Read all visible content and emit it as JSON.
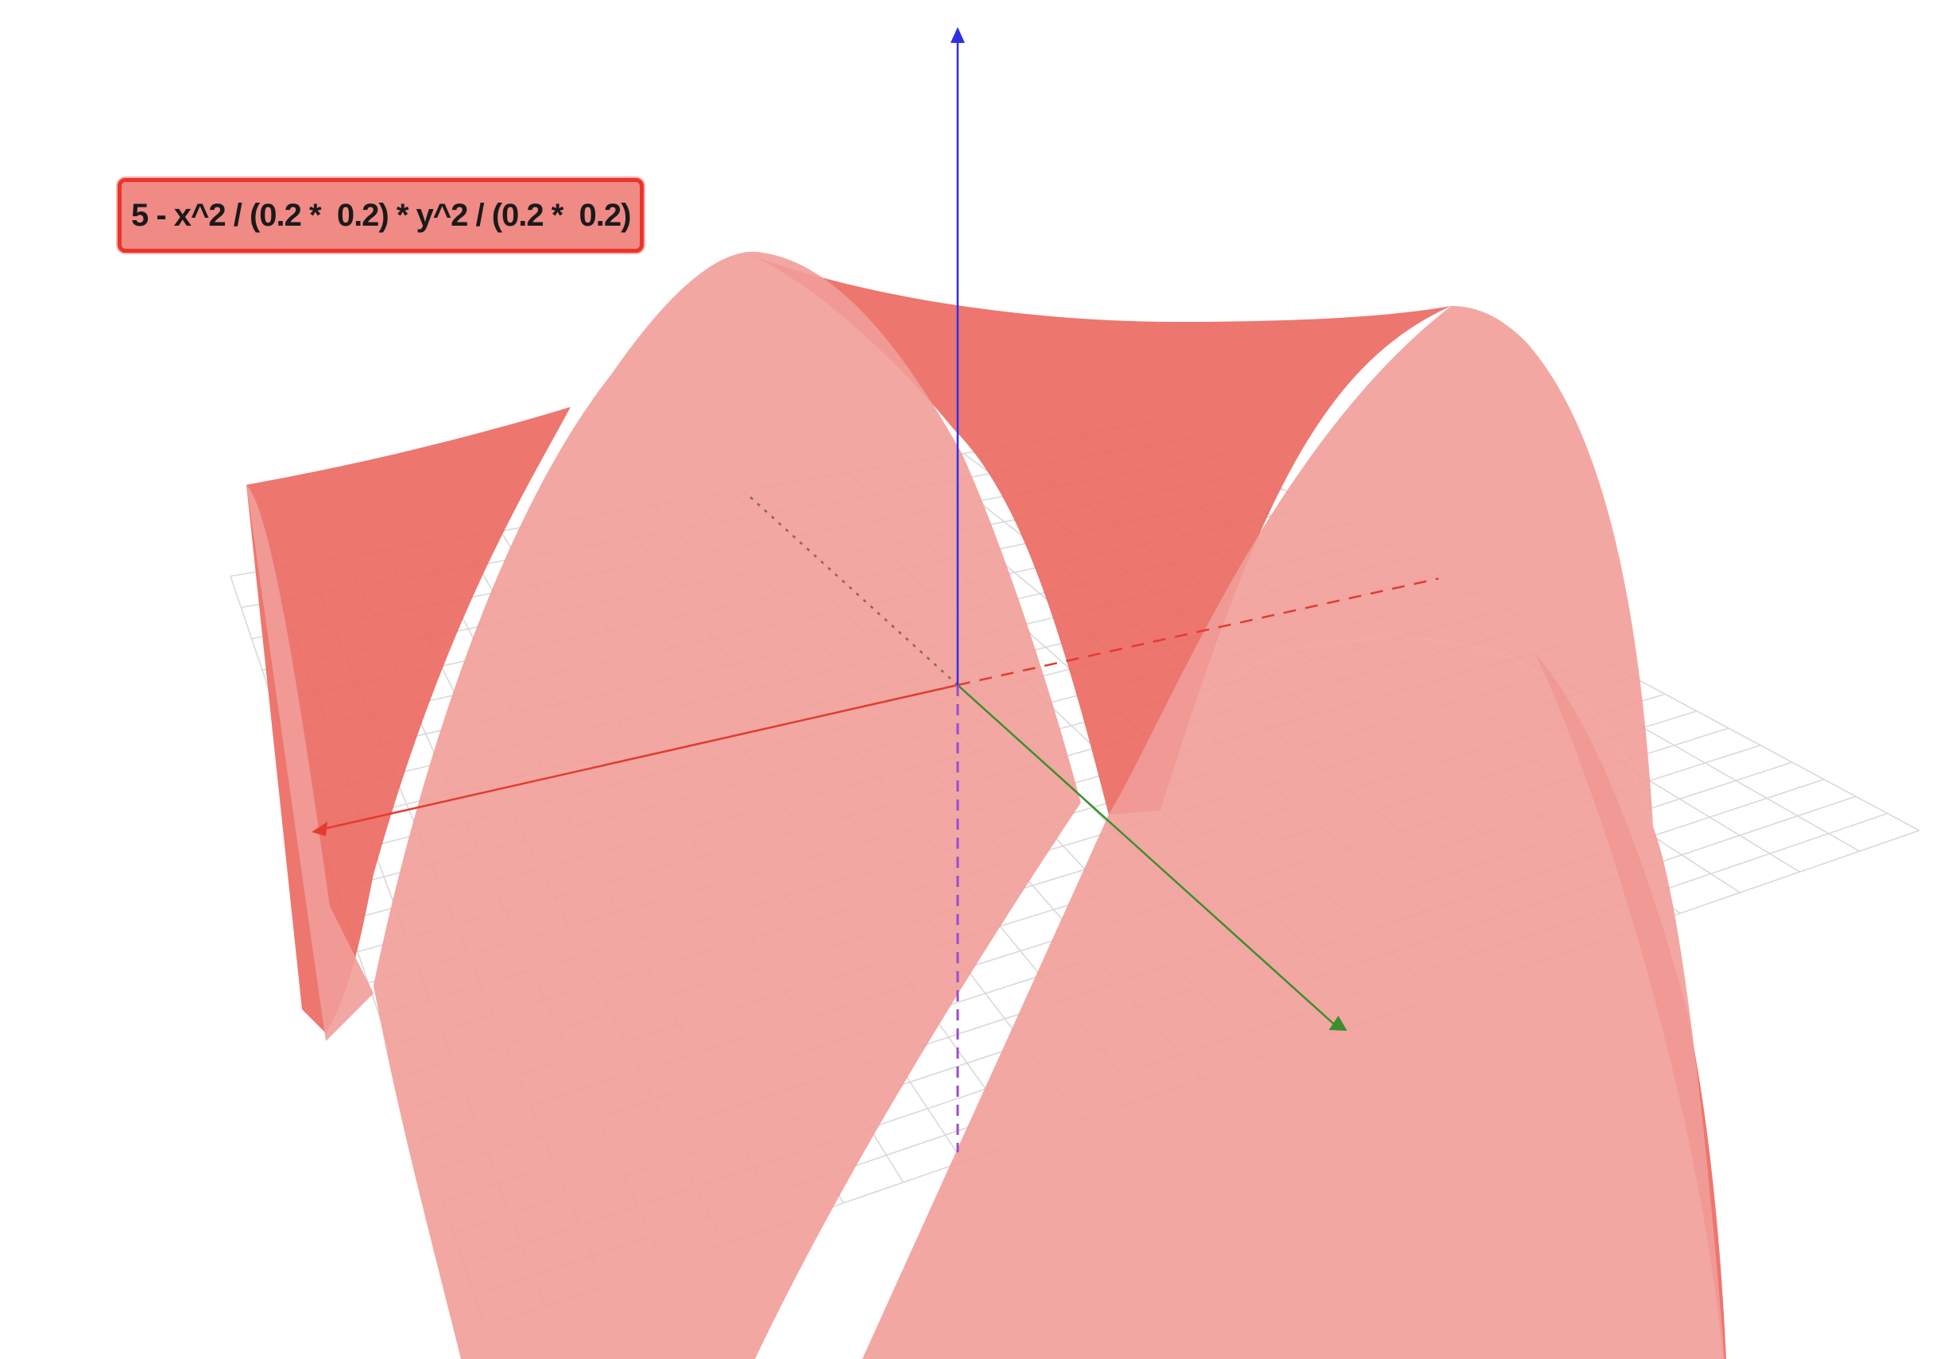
{
  "graph": {
    "formula_label": "5 - x^2 / (0.2 *  0.2) * y^2 / (0.2 *  0.2)",
    "surface_colors": {
      "front": "#f19d99",
      "back": "#eb6a63",
      "label_fill": "#f08a85",
      "label_border": "#e8352b"
    },
    "axis_colors": {
      "x": "#e33b2f",
      "y": "#3b8f2c",
      "z": "#2f2fe6",
      "z_below": "#9a4bd3",
      "y_behind": "#8a6a3a",
      "grid": "#d9d9d9"
    }
  }
}
